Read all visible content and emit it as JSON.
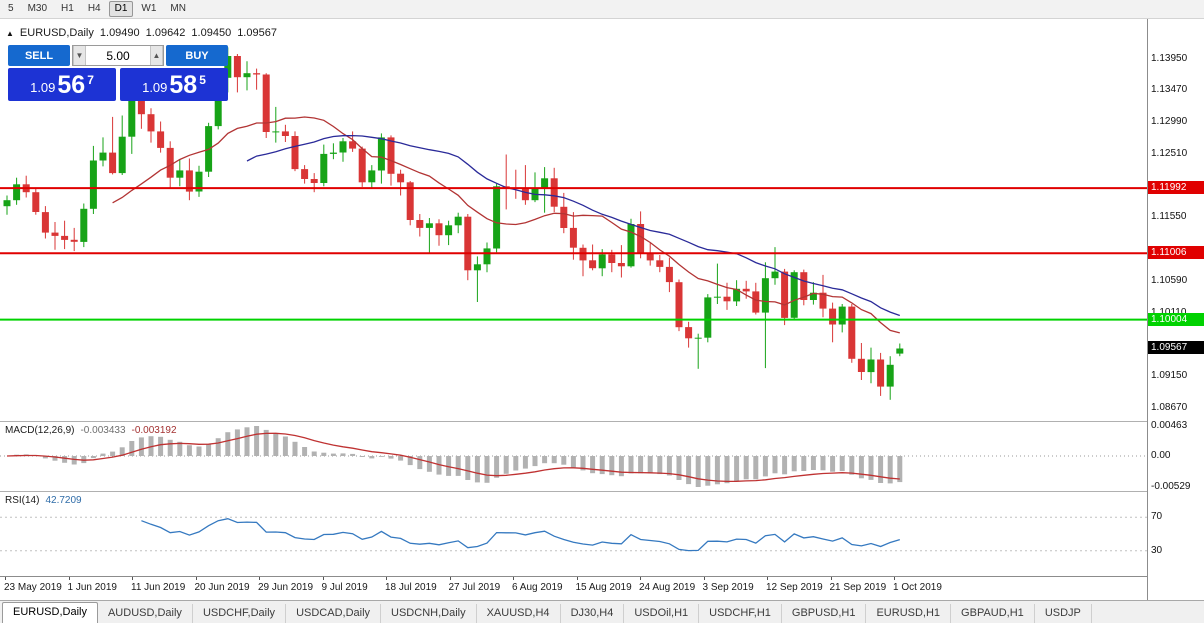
{
  "toolbar": {
    "timeframes": [
      {
        "label": "5",
        "active": false
      },
      {
        "label": "M30",
        "active": false
      },
      {
        "label": "H1",
        "active": false
      },
      {
        "label": "H4",
        "active": false
      },
      {
        "label": "D1",
        "active": true
      },
      {
        "label": "W1",
        "active": false
      },
      {
        "label": "MN",
        "active": false
      }
    ]
  },
  "icons": {
    "panel_toggle": "▲",
    "volume_down": "▼",
    "volume_up": "▲"
  },
  "header": {
    "symbol": "EURUSD,Daily",
    "open": "1.09490",
    "high": "1.09642",
    "low": "1.09450",
    "close": "1.09567"
  },
  "trade_panel": {
    "sell_label": "SELL",
    "buy_label": "BUY",
    "volume": "5.00",
    "sell_price": {
      "base": "1.09",
      "big": "56",
      "sup": "7"
    },
    "buy_price": {
      "base": "1.09",
      "big": "58",
      "sup": "5"
    }
  },
  "price_axis": {
    "ticks": [
      "1.13950",
      "1.13470",
      "1.12990",
      "1.12510",
      "1.11550",
      "1.10590",
      "1.10110",
      "1.09150",
      "1.08670"
    ]
  },
  "current_price": {
    "label": "1.09567",
    "value": 1.09567
  },
  "macd_pane": {
    "title": "MACD(12,26,9)",
    "value_main": "-0.003433",
    "value_signal": "-0.003192",
    "axis_max": "0.00463",
    "axis_zero": "0.00",
    "axis_min": "-0.00529"
  },
  "rsi_pane": {
    "title": "RSI(14)",
    "value": "42.7209",
    "levels": [
      "70",
      "30"
    ]
  },
  "date_axis": [
    "23 May 2019",
    "1 Jun 2019",
    "11 Jun 2019",
    "20 Jun 2019",
    "29 Jun 2019",
    "9 Jul 2019",
    "18 Jul 2019",
    "27 Jul 2019",
    "6 Aug 2019",
    "15 Aug 2019",
    "24 Aug 2019",
    "3 Sep 2019",
    "12 Sep 2019",
    "21 Sep 2019",
    "1 Oct 2019"
  ],
  "tabs": [
    {
      "label": "EURUSD,Daily",
      "active": true
    },
    {
      "label": "AUDUSD,Daily",
      "active": false
    },
    {
      "label": "USDCHF,Daily",
      "active": false
    },
    {
      "label": "USDCAD,Daily",
      "active": false
    },
    {
      "label": "USDCNH,Daily",
      "active": false
    },
    {
      "label": "XAUUSD,H4",
      "active": false
    },
    {
      "label": "DJ30,H4",
      "active": false
    },
    {
      "label": "USDOil,H1",
      "active": false
    },
    {
      "label": "USDCHF,H1",
      "active": false
    },
    {
      "label": "GBPUSD,H1",
      "active": false
    },
    {
      "label": "EURUSD,H1",
      "active": false
    },
    {
      "label": "GBPAUD,H1",
      "active": false
    },
    {
      "label": "USDJP",
      "active": false
    }
  ],
  "colors": {
    "candle_up": "#17a317",
    "candle_down": "#d93636",
    "macd_histogram": "#b2b2b2",
    "macd_signal": "#bf3232",
    "rsi_line": "#3579c0",
    "current_price_bg": "#000000",
    "button_blue": "#1569cf",
    "price_box_blue": "#1d33d4"
  },
  "chart_data": {
    "type": "candlestick",
    "symbol": "EURUSD",
    "timeframe": "Daily",
    "y_range": [
      1.0847,
      1.1455
    ],
    "hlines": [
      {
        "value": 1.11992,
        "label": "1.11992",
        "color": "#e00000"
      },
      {
        "value": 1.11006,
        "label": "1.11006",
        "color": "#e00000"
      },
      {
        "value": 1.10004,
        "label": "1.10004",
        "color": "#00d200"
      }
    ],
    "moving_averages": [
      {
        "period": 12,
        "color": "#b23434"
      },
      {
        "period": 26,
        "color": "#2a2a99"
      }
    ],
    "indicators": [
      {
        "name": "MACD",
        "params": [
          12,
          26,
          9
        ],
        "values": [
          -0.003433,
          -0.003192
        ]
      },
      {
        "name": "RSI",
        "params": [
          14
        ],
        "value": 42.7209
      }
    ],
    "ohlc": [
      [
        1.1172,
        1.1188,
        1.1159,
        1.1181
      ],
      [
        1.1181,
        1.1215,
        1.1174,
        1.1205
      ],
      [
        1.1205,
        1.1218,
        1.1185,
        1.1193
      ],
      [
        1.1193,
        1.1199,
        1.1159,
        1.1163
      ],
      [
        1.1163,
        1.1172,
        1.1123,
        1.1132
      ],
      [
        1.1132,
        1.1148,
        1.1106,
        1.1127
      ],
      [
        1.1127,
        1.115,
        1.1107,
        1.1121
      ],
      [
        1.1121,
        1.1139,
        1.1104,
        1.1118
      ],
      [
        1.1118,
        1.1176,
        1.111,
        1.1168
      ],
      [
        1.1168,
        1.1263,
        1.116,
        1.1241
      ],
      [
        1.1241,
        1.1276,
        1.1232,
        1.1253
      ],
      [
        1.1253,
        1.1307,
        1.122,
        1.1222
      ],
      [
        1.1222,
        1.1309,
        1.1219,
        1.1277
      ],
      [
        1.1277,
        1.1348,
        1.1251,
        1.1334
      ],
      [
        1.1334,
        1.134,
        1.1289,
        1.1311
      ],
      [
        1.1311,
        1.132,
        1.1268,
        1.1285
      ],
      [
        1.1285,
        1.13,
        1.1253,
        1.126
      ],
      [
        1.126,
        1.127,
        1.12,
        1.1215
      ],
      [
        1.1215,
        1.1243,
        1.1202,
        1.1226
      ],
      [
        1.1226,
        1.1244,
        1.1181,
        1.1194
      ],
      [
        1.1194,
        1.1233,
        1.1186,
        1.1224
      ],
      [
        1.1224,
        1.1298,
        1.1216,
        1.1293
      ],
      [
        1.1293,
        1.1378,
        1.1288,
        1.1366
      ],
      [
        1.1366,
        1.1412,
        1.1344,
        1.1399
      ],
      [
        1.1399,
        1.1402,
        1.1344,
        1.1367
      ],
      [
        1.1367,
        1.1391,
        1.1347,
        1.1373
      ],
      [
        1.1373,
        1.138,
        1.1348,
        1.1371
      ],
      [
        1.1371,
        1.1373,
        1.1275,
        1.1284
      ],
      [
        1.1284,
        1.1322,
        1.1268,
        1.1285
      ],
      [
        1.1285,
        1.1295,
        1.1269,
        1.1278
      ],
      [
        1.1278,
        1.1285,
        1.1225,
        1.1228
      ],
      [
        1.1228,
        1.1234,
        1.1206,
        1.1213
      ],
      [
        1.1213,
        1.1222,
        1.1193,
        1.1207
      ],
      [
        1.1207,
        1.1265,
        1.1202,
        1.1251
      ],
      [
        1.1251,
        1.1267,
        1.1243,
        1.1253
      ],
      [
        1.1253,
        1.1275,
        1.1239,
        1.127
      ],
      [
        1.127,
        1.1285,
        1.1254,
        1.1259
      ],
      [
        1.1259,
        1.1262,
        1.1201,
        1.1208
      ],
      [
        1.1208,
        1.1234,
        1.1199,
        1.1226
      ],
      [
        1.1226,
        1.1282,
        1.1206,
        1.1276
      ],
      [
        1.1276,
        1.1279,
        1.1203,
        1.1221
      ],
      [
        1.1221,
        1.1227,
        1.1188,
        1.1208
      ],
      [
        1.1208,
        1.121,
        1.1143,
        1.1151
      ],
      [
        1.1151,
        1.116,
        1.1126,
        1.1139
      ],
      [
        1.1139,
        1.1154,
        1.1101,
        1.1146
      ],
      [
        1.1146,
        1.1152,
        1.1112,
        1.1128
      ],
      [
        1.1128,
        1.115,
        1.1113,
        1.1143
      ],
      [
        1.1143,
        1.1162,
        1.1131,
        1.1156
      ],
      [
        1.1156,
        1.116,
        1.106,
        1.1075
      ],
      [
        1.1075,
        1.1096,
        1.1027,
        1.1084
      ],
      [
        1.1084,
        1.1117,
        1.1072,
        1.1108
      ],
      [
        1.1108,
        1.1206,
        1.1102,
        1.1202
      ],
      [
        1.1202,
        1.125,
        1.1167,
        1.12
      ],
      [
        1.12,
        1.1227,
        1.1183,
        1.1199
      ],
      [
        1.1199,
        1.1234,
        1.1174,
        1.1181
      ],
      [
        1.1181,
        1.1223,
        1.1178,
        1.12
      ],
      [
        1.12,
        1.1231,
        1.1162,
        1.1214
      ],
      [
        1.1214,
        1.123,
        1.1163,
        1.1171
      ],
      [
        1.1171,
        1.1192,
        1.1131,
        1.1139
      ],
      [
        1.1139,
        1.1163,
        1.1091,
        1.1109
      ],
      [
        1.1109,
        1.1114,
        1.1066,
        1.109
      ],
      [
        1.109,
        1.1114,
        1.1075,
        1.1078
      ],
      [
        1.1078,
        1.1107,
        1.1066,
        1.1099
      ],
      [
        1.1099,
        1.1106,
        1.1072,
        1.1086
      ],
      [
        1.1086,
        1.1113,
        1.1064,
        1.1081
      ],
      [
        1.1081,
        1.1153,
        1.1079,
        1.1145
      ],
      [
        1.1145,
        1.1164,
        1.1093,
        1.1101
      ],
      [
        1.1101,
        1.1116,
        1.1082,
        1.109
      ],
      [
        1.109,
        1.1098,
        1.1072,
        1.108
      ],
      [
        1.108,
        1.1094,
        1.1042,
        1.1057
      ],
      [
        1.1057,
        1.1061,
        1.0983,
        1.0989
      ],
      [
        1.0989,
        1.0997,
        1.0958,
        1.0972
      ],
      [
        1.0972,
        1.0979,
        1.0926,
        1.0973
      ],
      [
        1.0973,
        1.1039,
        1.0966,
        1.1034
      ],
      [
        1.1034,
        1.1085,
        1.1024,
        1.1035
      ],
      [
        1.1035,
        1.1056,
        1.1015,
        1.1028
      ],
      [
        1.1028,
        1.106,
        1.1021,
        1.1047
      ],
      [
        1.1047,
        1.1059,
        1.1032,
        1.1043
      ],
      [
        1.1043,
        1.1056,
        1.1008,
        1.1011
      ],
      [
        1.1011,
        1.1087,
        1.0927,
        1.1063
      ],
      [
        1.1063,
        1.111,
        1.1053,
        1.1073
      ],
      [
        1.1073,
        1.1077,
        1.0992,
        1.1003
      ],
      [
        1.1003,
        1.1075,
        1.0999,
        1.1072
      ],
      [
        1.1072,
        1.1076,
        1.1022,
        1.103
      ],
      [
        1.103,
        1.1057,
        1.1023,
        1.1041
      ],
      [
        1.1041,
        1.1068,
        1.1004,
        1.1017
      ],
      [
        1.1017,
        1.1026,
        1.0966,
        1.0993
      ],
      [
        1.0993,
        1.1024,
        1.0981,
        1.102
      ],
      [
        1.102,
        1.1024,
        1.0935,
        1.0941
      ],
      [
        1.0941,
        1.0965,
        1.0909,
        1.0921
      ],
      [
        1.0921,
        1.0958,
        1.0904,
        1.094
      ],
      [
        1.094,
        1.095,
        1.0885,
        1.0899
      ],
      [
        1.0899,
        1.0945,
        1.0879,
        1.0932
      ],
      [
        1.0949,
        1.09642,
        1.0945,
        1.09567
      ]
    ]
  }
}
